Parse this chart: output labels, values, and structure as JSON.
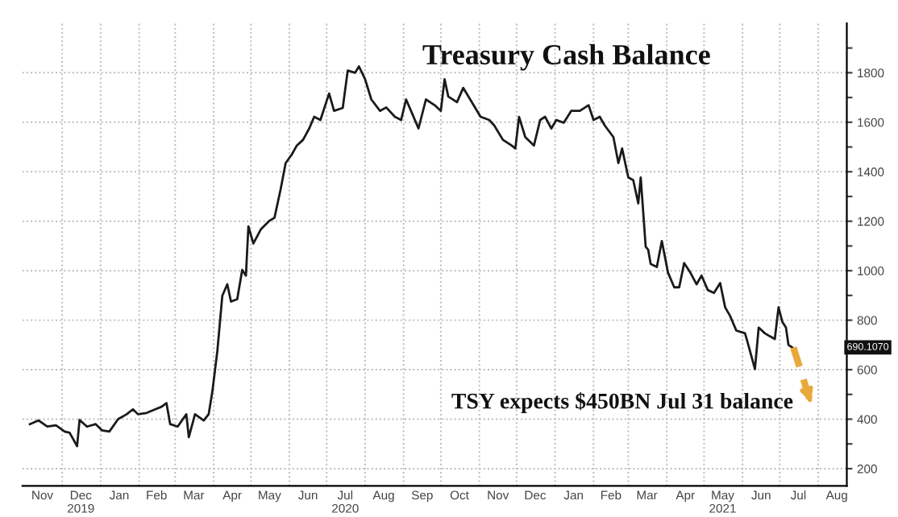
{
  "chart_data": {
    "type": "line",
    "title": "Treasury Cash Balance",
    "annotations": [
      "TSY expects $450BN Jul 31 balance",
      "690.1070"
    ],
    "series": [
      {
        "color": "#1a1a1a",
        "x": [
          "2019-11-05",
          "2019-11-12",
          "2019-11-19",
          "2019-11-26",
          "2019-12-03",
          "2019-12-07",
          "2019-12-13",
          "2019-12-15",
          "2019-12-21",
          "2019-12-28",
          "2020-01-02",
          "2020-01-08",
          "2020-01-15",
          "2020-01-22",
          "2020-01-27",
          "2020-01-31",
          "2020-02-07",
          "2020-02-14",
          "2020-02-19",
          "2020-02-23",
          "2020-02-26",
          "2020-03-03",
          "2020-03-10",
          "2020-03-12",
          "2020-03-17",
          "2020-03-24",
          "2020-03-28",
          "2020-03-31",
          "2020-04-04",
          "2020-04-08",
          "2020-04-12",
          "2020-04-15",
          "2020-04-20",
          "2020-04-24",
          "2020-04-27",
          "2020-04-29",
          "2020-05-03",
          "2020-05-09",
          "2020-05-16",
          "2020-05-20",
          "2020-05-25",
          "2020-05-29",
          "2020-06-03",
          "2020-06-07",
          "2020-06-12",
          "2020-06-17",
          "2020-06-21",
          "2020-06-26",
          "2020-07-03",
          "2020-07-07",
          "2020-07-14",
          "2020-07-18",
          "2020-07-24",
          "2020-07-27",
          "2020-08-01",
          "2020-08-06",
          "2020-08-13",
          "2020-08-18",
          "2020-08-25",
          "2020-08-30",
          "2020-09-03",
          "2020-09-08",
          "2020-09-13",
          "2020-09-19",
          "2020-09-26",
          "2020-10-01",
          "2020-10-04",
          "2020-10-07",
          "2020-10-14",
          "2020-10-19",
          "2020-10-26",
          "2020-11-02",
          "2020-11-09",
          "2020-11-13",
          "2020-11-20",
          "2020-11-27",
          "2020-11-30",
          "2020-12-03",
          "2020-12-08",
          "2020-12-15",
          "2020-12-20",
          "2020-12-24",
          "2020-12-29",
          "2021-01-02",
          "2021-01-08",
          "2021-01-14",
          "2021-01-21",
          "2021-01-28",
          "2021-02-01",
          "2021-02-06",
          "2021-02-10",
          "2021-02-17",
          "2021-02-21",
          "2021-02-24",
          "2021-03-01",
          "2021-03-05",
          "2021-03-09",
          "2021-03-11",
          "2021-03-15",
          "2021-03-17",
          "2021-03-19",
          "2021-03-24",
          "2021-03-28",
          "2021-04-02",
          "2021-04-07",
          "2021-04-11",
          "2021-04-15",
          "2021-04-20",
          "2021-04-25",
          "2021-04-29",
          "2021-05-04",
          "2021-05-09",
          "2021-05-14",
          "2021-05-18",
          "2021-05-22",
          "2021-05-27",
          "2021-06-03",
          "2021-06-05",
          "2021-06-11",
          "2021-06-14",
          "2021-06-19",
          "2021-06-23",
          "2021-06-27",
          "2021-06-30",
          "2021-07-03",
          "2021-07-06",
          "2021-07-08",
          "2021-07-11"
        ],
        "values": [
          380,
          395,
          370,
          375,
          350,
          345,
          291,
          397,
          370,
          380,
          355,
          350,
          400,
          420,
          440,
          420,
          425,
          440,
          450,
          465,
          380,
          370,
          420,
          327,
          420,
          395,
          420,
          513,
          676,
          899,
          945,
          875,
          885,
          1003,
          980,
          1179,
          1110,
          1167,
          1202,
          1214,
          1330,
          1435,
          1470,
          1506,
          1529,
          1575,
          1622,
          1609,
          1716,
          1646,
          1658,
          1809,
          1800,
          1826,
          1774,
          1692,
          1646,
          1660,
          1622,
          1609,
          1692,
          1634,
          1575,
          1692,
          1669,
          1646,
          1774,
          1704,
          1681,
          1739,
          1681,
          1622,
          1609,
          1587,
          1529,
          1506,
          1494,
          1622,
          1540,
          1506,
          1609,
          1622,
          1575,
          1609,
          1598,
          1646,
          1646,
          1669,
          1609,
          1622,
          1587,
          1540,
          1435,
          1494,
          1377,
          1366,
          1272,
          1377,
          1097,
          1085,
          1027,
          1015,
          1120,
          992,
          933,
          933,
          1031,
          992,
          945,
          980,
          922,
          910,
          950,
          852,
          817,
          758,
          747,
          712,
          602,
          770,
          747,
          735,
          724,
          852,
          794,
          770,
          700,
          690
        ]
      },
      {
        "color": "#e8a93a",
        "line_style": "dashed",
        "x": [
          "2021-07-12",
          "2021-07-27"
        ],
        "values": [
          690,
          450
        ]
      }
    ],
    "xlim": [
      "2019-10-30",
      "2021-08-24"
    ],
    "xticks": [
      {
        "value": "2019-11-15",
        "label": "Nov"
      },
      {
        "value": "2019-12-16",
        "label": "Dec\n2019"
      },
      {
        "value": "2020-01-16",
        "label": "Jan"
      },
      {
        "value": "2020-02-15",
        "label": "Feb"
      },
      {
        "value": "2020-03-16",
        "label": "Mar"
      },
      {
        "value": "2020-04-16",
        "label": "Apr"
      },
      {
        "value": "2020-05-16",
        "label": "May"
      },
      {
        "value": "2020-06-16",
        "label": "Jun"
      },
      {
        "value": "2020-07-16",
        "label": "Jul\n2020"
      },
      {
        "value": "2020-08-16",
        "label": "Aug"
      },
      {
        "value": "2020-09-16",
        "label": "Sep"
      },
      {
        "value": "2020-10-16",
        "label": "Oct"
      },
      {
        "value": "2020-11-16",
        "label": "Nov"
      },
      {
        "value": "2020-12-16",
        "label": "Dec"
      },
      {
        "value": "2021-01-16",
        "label": "Jan"
      },
      {
        "value": "2021-02-15",
        "label": "Feb"
      },
      {
        "value": "2021-03-16",
        "label": "Mar"
      },
      {
        "value": "2021-04-16",
        "label": "Apr"
      },
      {
        "value": "2021-05-16",
        "label": "May\n2021"
      },
      {
        "value": "2021-06-16",
        "label": "Jun"
      },
      {
        "value": "2021-07-16",
        "label": "Jul"
      },
      {
        "value": "2021-08-16",
        "label": "Aug"
      },
      {
        "value": "2019-12-01",
        "label": null
      },
      {
        "value": "2020-01-01",
        "label": null
      },
      {
        "value": "2020-02-01",
        "label": null
      },
      {
        "value": "2020-03-01",
        "label": null
      },
      {
        "value": "2020-04-01",
        "label": null
      },
      {
        "value": "2020-05-01",
        "label": null
      },
      {
        "value": "2020-06-01",
        "label": null
      },
      {
        "value": "2020-07-01",
        "label": null
      },
      {
        "value": "2020-08-01",
        "label": null
      },
      {
        "value": "2020-09-01",
        "label": null
      },
      {
        "value": "2020-10-01",
        "label": null
      },
      {
        "value": "2020-11-01",
        "label": null
      },
      {
        "value": "2020-12-01",
        "label": null
      },
      {
        "value": "2021-01-01",
        "label": null
      },
      {
        "value": "2021-02-01",
        "label": null
      },
      {
        "value": "2021-03-01",
        "label": null
      },
      {
        "value": "2021-04-01",
        "label": null
      },
      {
        "value": "2021-05-01",
        "label": null
      },
      {
        "value": "2021-06-01",
        "label": null
      },
      {
        "value": "2021-07-01",
        "label": null
      },
      {
        "value": "2021-08-01",
        "label": null
      }
    ],
    "ylim": [
      130,
      2000
    ],
    "yticks": [
      200,
      {
        "value": 300,
        "label": null
      },
      400,
      {
        "value": 500,
        "label": null
      },
      600,
      {
        "value": 700,
        "label": null
      },
      800,
      {
        "value": 900,
        "label": null
      },
      1000,
      {
        "value": 1100,
        "label": null
      },
      1200,
      {
        "value": 1300,
        "label": null
      },
      1400,
      {
        "value": 1500,
        "label": null
      },
      1600,
      {
        "value": 1700,
        "label": null
      },
      1800,
      {
        "value": 1900,
        "label": null
      }
    ],
    "grid": true
  }
}
